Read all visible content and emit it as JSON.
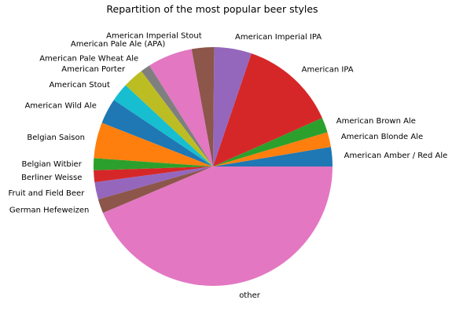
{
  "chart_data": {
    "type": "pie",
    "title": "Repartition of the most popular beer styles",
    "start_angle_deg": 0,
    "counterclockwise": true,
    "slices": [
      {
        "label": "American Amber / Red Ale",
        "value": 2.6,
        "color": "#1f77b4"
      },
      {
        "label": "American Blonde Ale",
        "value": 2.0,
        "color": "#ff7f0e"
      },
      {
        "label": "American Brown Ale",
        "value": 2.0,
        "color": "#2ca02c"
      },
      {
        "label": "American IPA",
        "value": 13.0,
        "color": "#d62728"
      },
      {
        "label": "American Imperial IPA",
        "value": 5.0,
        "color": "#9467bd"
      },
      {
        "label": "American Imperial Stout",
        "value": 3.0,
        "color": "#8c564b"
      },
      {
        "label": "American Pale Ale (APA)",
        "value": 6.0,
        "color": "#e377c2"
      },
      {
        "label": "American Pale Wheat Ale",
        "value": 1.3,
        "color": "#7f7f7f"
      },
      {
        "label": "American Porter",
        "value": 2.8,
        "color": "#bcbd22"
      },
      {
        "label": "American Stout",
        "value": 2.5,
        "color": "#17becf"
      },
      {
        "label": "American Wild Ale",
        "value": 3.4,
        "color": "#1f77b4"
      },
      {
        "label": "Belgian Saison",
        "value": 4.8,
        "color": "#ff7f0e"
      },
      {
        "label": "Belgian Witbier",
        "value": 1.6,
        "color": "#2ca02c"
      },
      {
        "label": "Berliner Weisse",
        "value": 1.6,
        "color": "#d62728"
      },
      {
        "label": "Fruit and Field Beer",
        "value": 2.3,
        "color": "#9467bd"
      },
      {
        "label": "German Hefeweizen",
        "value": 1.9,
        "color": "#8c564b"
      },
      {
        "label": "other",
        "value": 43.2,
        "color": "#e377c2"
      }
    ]
  }
}
